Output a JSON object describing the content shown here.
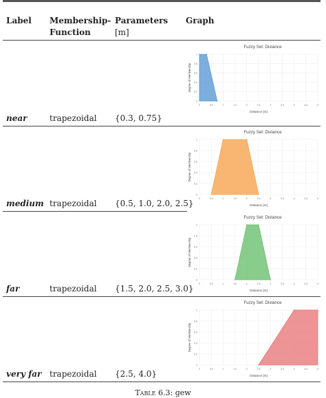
{
  "table": {
    "headers": {
      "label": "Label",
      "membership_line1": "Membership-",
      "membership_line2": "Function",
      "parameters_line1": "Parameters",
      "parameters_line2": "[m]",
      "graph": "Graph"
    },
    "rows": [
      {
        "label": "near",
        "function": "trapezoidal",
        "params": "{0.3, 0.75}"
      },
      {
        "label": "medium",
        "function": "trapezoidal",
        "params": "{0.5, 1.0, 2.0, 2.5}"
      },
      {
        "label": "far",
        "function": "trapezoidal",
        "params": "{1.5, 2.0, 2.5, 3.0}"
      },
      {
        "label": "very far",
        "function": "trapezoidal",
        "params": "{2.5, 4.0}"
      }
    ],
    "caption_prefix": "Table 6.3:",
    "caption_text": "gew"
  },
  "chart_data": [
    {
      "type": "area",
      "title": "Fuzzy Set: Distance",
      "xlabel": "Distance [m]",
      "ylabel": "Degree of Membership",
      "color": "#5b9bd5",
      "x": [
        0,
        0.3,
        0.75
      ],
      "y": [
        1,
        1,
        0
      ],
      "xlim": [
        0,
        5
      ],
      "ylim": [
        0,
        1
      ],
      "grid": true
    },
    {
      "type": "area",
      "title": "Fuzzy Set: Distance",
      "xlabel": "Distance [m]",
      "ylabel": "Degree of Membership",
      "color": "#f7a44f",
      "x": [
        0.5,
        1.0,
        2.0,
        2.5
      ],
      "y": [
        0,
        1,
        1,
        0
      ],
      "xlim": [
        0,
        5
      ],
      "ylim": [
        0,
        1
      ],
      "grid": true
    },
    {
      "type": "area",
      "title": "Fuzzy Set: Distance",
      "xlabel": "Distance [m]",
      "ylabel": "Degree of Membership",
      "color": "#6cc070",
      "x": [
        1.5,
        2.0,
        2.5,
        3.0
      ],
      "y": [
        0,
        1,
        1,
        0
      ],
      "xlim": [
        0,
        5
      ],
      "ylim": [
        0,
        1
      ],
      "grid": true
    },
    {
      "type": "area",
      "title": "Fuzzy Set: Distance",
      "xlabel": "Distance [m]",
      "ylabel": "Degree of Membership",
      "color": "#e8797c",
      "x": [
        2.5,
        4.0,
        5.0
      ],
      "y": [
        0,
        1,
        1
      ],
      "xlim": [
        0,
        5
      ],
      "ylim": [
        0,
        1
      ],
      "grid": true
    }
  ]
}
